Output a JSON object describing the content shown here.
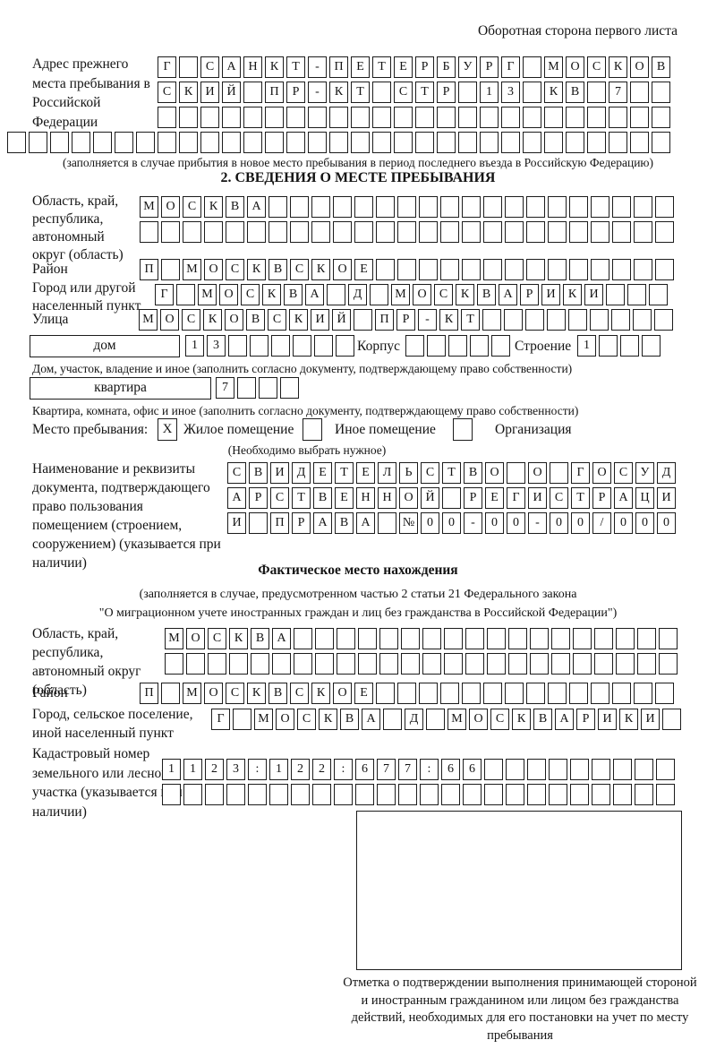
{
  "header": {
    "side_note": "Оборотная сторона первого листа"
  },
  "prev_address": {
    "label": "Адрес прежнего места пребывания в Российской Федерации",
    "rows": [
      {
        "len": 24,
        "text": "Г САНКТ-ПЕТЕРБУРГ МОСКОВ"
      },
      {
        "len": 24,
        "text": "СКИЙ ПР-КТ СТР 13 КВ 7"
      },
      {
        "len": 24,
        "text": ""
      },
      {
        "len": 31,
        "text": ""
      }
    ],
    "note": "(заполняется в случае прибытия в новое место пребывания в период последнего въезда в Российскую Федерацию)"
  },
  "section2": {
    "title": "2. СВЕДЕНИЯ О МЕСТЕ ПРЕБЫВАНИЯ",
    "region": {
      "label": "Область, край, республика, автономный округ (область)",
      "rows": [
        {
          "len": 25,
          "text": "МОСКВА"
        },
        {
          "len": 25,
          "text": ""
        }
      ]
    },
    "district": {
      "label": "Район",
      "row": {
        "len": 25,
        "text": "П МОСКВСКОЕ"
      }
    },
    "city": {
      "label": "Город или другой населенный пункт",
      "row": {
        "len": 24,
        "text": "Г МОСКВА Д МОСКВАРИКИ"
      }
    },
    "street": {
      "label": "Улица",
      "row": {
        "len": 25,
        "text": "МОСКОВСКИЙ ПР-КТ"
      }
    },
    "house": {
      "box_label": "дом",
      "cells": {
        "len": 8,
        "text": "13"
      },
      "korpus_label": "Корпус",
      "korpus_cells": {
        "len": 5,
        "text": ""
      },
      "stroenie_label": "Строение",
      "stroenie_cells": {
        "len": 4,
        "text": "1"
      },
      "note": "Дом, участок, владение и иное (заполнить согласно документу, подтверждающему право собственности)"
    },
    "apartment": {
      "box_label": "квартира",
      "cells": {
        "len": 4,
        "text": "7"
      },
      "note": "Квартира, комната, офис и иное (заполнить согласно документу, подтверждающему право собственности)"
    },
    "stay_type": {
      "label": "Место пребывания:",
      "options": [
        {
          "label": "Жилое помещение",
          "mark": "X"
        },
        {
          "label": "Иное помещение",
          "mark": ""
        },
        {
          "label": "Организация",
          "mark": ""
        }
      ],
      "note": "(Необходимо выбрать нужное)"
    },
    "document": {
      "label": "Наименование и реквизиты документа, подтверждающего право пользования помещением (строением, сооружением) (указывается при наличии)",
      "rows": [
        {
          "len": 21,
          "text": "СВИДЕТЕЛЬСТВО О ГОСУД"
        },
        {
          "len": 21,
          "text": "АРСТВЕННОЙ РЕГИСТРАЦИ"
        },
        {
          "len": 21,
          "text": "И ПРАВА №00-00-00/000"
        }
      ]
    }
  },
  "actual_location": {
    "title": "Фактическое место нахождения",
    "note_line1": "(заполняется в случае, предусмотренном частью 2 статьи 21 Федерального закона",
    "note_line2": "\"О миграционном учете иностранных граждан и лиц без гражданства в Российской Федерации\")",
    "region": {
      "label": "Область, край, республика, автономный округ (область)",
      "rows": [
        {
          "len": 24,
          "text": "МОСКВА"
        },
        {
          "len": 24,
          "text": ""
        }
      ]
    },
    "district": {
      "label": "Район",
      "row": {
        "len": 25,
        "text": "П МОСКВСКОЕ"
      }
    },
    "city": {
      "label": "Город, сельское поселение, иной населенный пункт",
      "row": {
        "len": 22,
        "text": "Г МОСКВА Д МОСКВАРИКИ"
      }
    },
    "cadastral": {
      "label": "Кадастровый номер земельного или лесного участка (указывается при наличии)",
      "rows": [
        {
          "len": 24,
          "text": "1123:122:677:66"
        },
        {
          "len": 24,
          "text": ""
        }
      ]
    },
    "stamp_note": "Отметка о подтверждении выполнения принимающей стороной и иностранным гражданином или лицом без гражданства действий, необходимых для его постановки на учет по месту пребывания"
  }
}
